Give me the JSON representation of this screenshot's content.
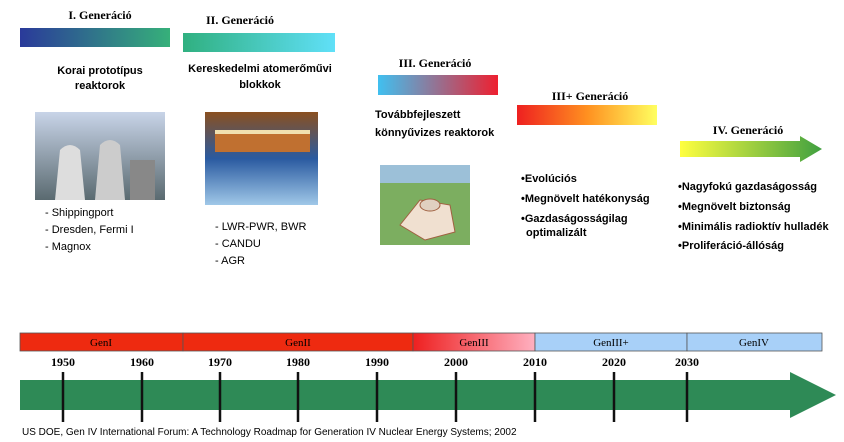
{
  "generations": [
    {
      "title": "I. Generáció",
      "description": [
        "Korai prototípus",
        "reaktorok"
      ],
      "items": [
        "- Shippingport",
        "- Dresden, Fermi I",
        "- Magnox"
      ]
    },
    {
      "title": "II. Generáció",
      "description": [
        "Kereskedelmi atomerőművi",
        "blokkok"
      ],
      "items": [
        "- LWR-PWR, BWR",
        "- CANDU",
        "- AGR"
      ]
    },
    {
      "title": "III. Generáció",
      "description": [
        "Továbbfejleszett",
        "könnyűvizes reaktorok"
      ]
    },
    {
      "title": "III+ Generáció",
      "items": [
        "•Evolúciós",
        "•Megnövelt hatékonyság",
        "•Gazdaságosságilag",
        "optimalizált"
      ]
    },
    {
      "title": "IV. Generáció",
      "items": [
        "•Nagyfokú gazdaságosság",
        "•Megnövelt biztonság",
        "•Minimális radioktív hulladék",
        "•Proliferáció-állóság"
      ]
    }
  ],
  "timeline": {
    "eras": [
      "GenI",
      "GenII",
      "GenIII",
      "GenIII+",
      "GenIV"
    ],
    "years": [
      "1950",
      "1960",
      "1970",
      "1980",
      "1990",
      "2000",
      "2010",
      "2020",
      "2030"
    ]
  },
  "source": "US DOE, Gen IV International Forum: A Technology Roadmap for Generation IV Nuclear Energy Systems; 2002"
}
